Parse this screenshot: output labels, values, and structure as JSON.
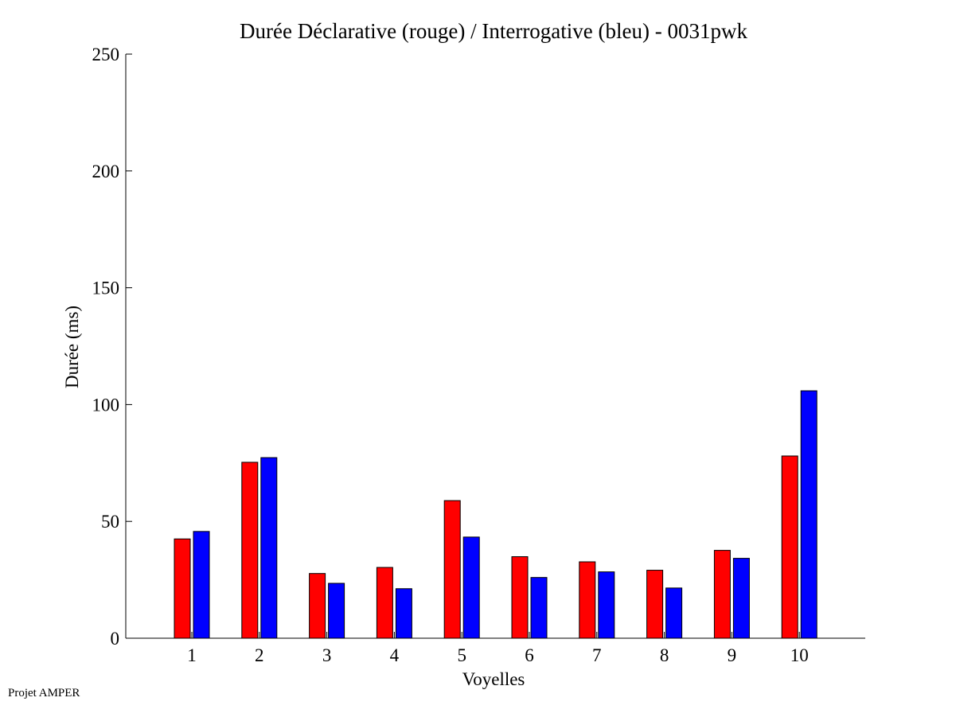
{
  "footer": "Projet AMPER",
  "chart_data": {
    "type": "bar",
    "title": "Durée Déclarative (rouge) / Interrogative (bleu) - 0031pwk",
    "xlabel": "Voyelles",
    "ylabel": "Durée (ms)",
    "ylim": [
      0,
      250
    ],
    "yticks": [
      "0",
      "50",
      "100",
      "150",
      "200",
      "250"
    ],
    "categories": [
      "1",
      "2",
      "3",
      "4",
      "5",
      "6",
      "7",
      "8",
      "9",
      "10"
    ],
    "grid": false,
    "legend": "none",
    "series": [
      {
        "color": "#ff0000",
        "values": [
          42.5,
          75.3,
          27.7,
          30.3,
          58.9,
          34.9,
          32.7,
          29.1,
          37.6,
          78.0
        ]
      },
      {
        "color": "#0000ff",
        "values": [
          45.7,
          77.3,
          23.5,
          21.2,
          43.3,
          26.0,
          28.4,
          21.5,
          34.2,
          105.9
        ]
      }
    ]
  }
}
